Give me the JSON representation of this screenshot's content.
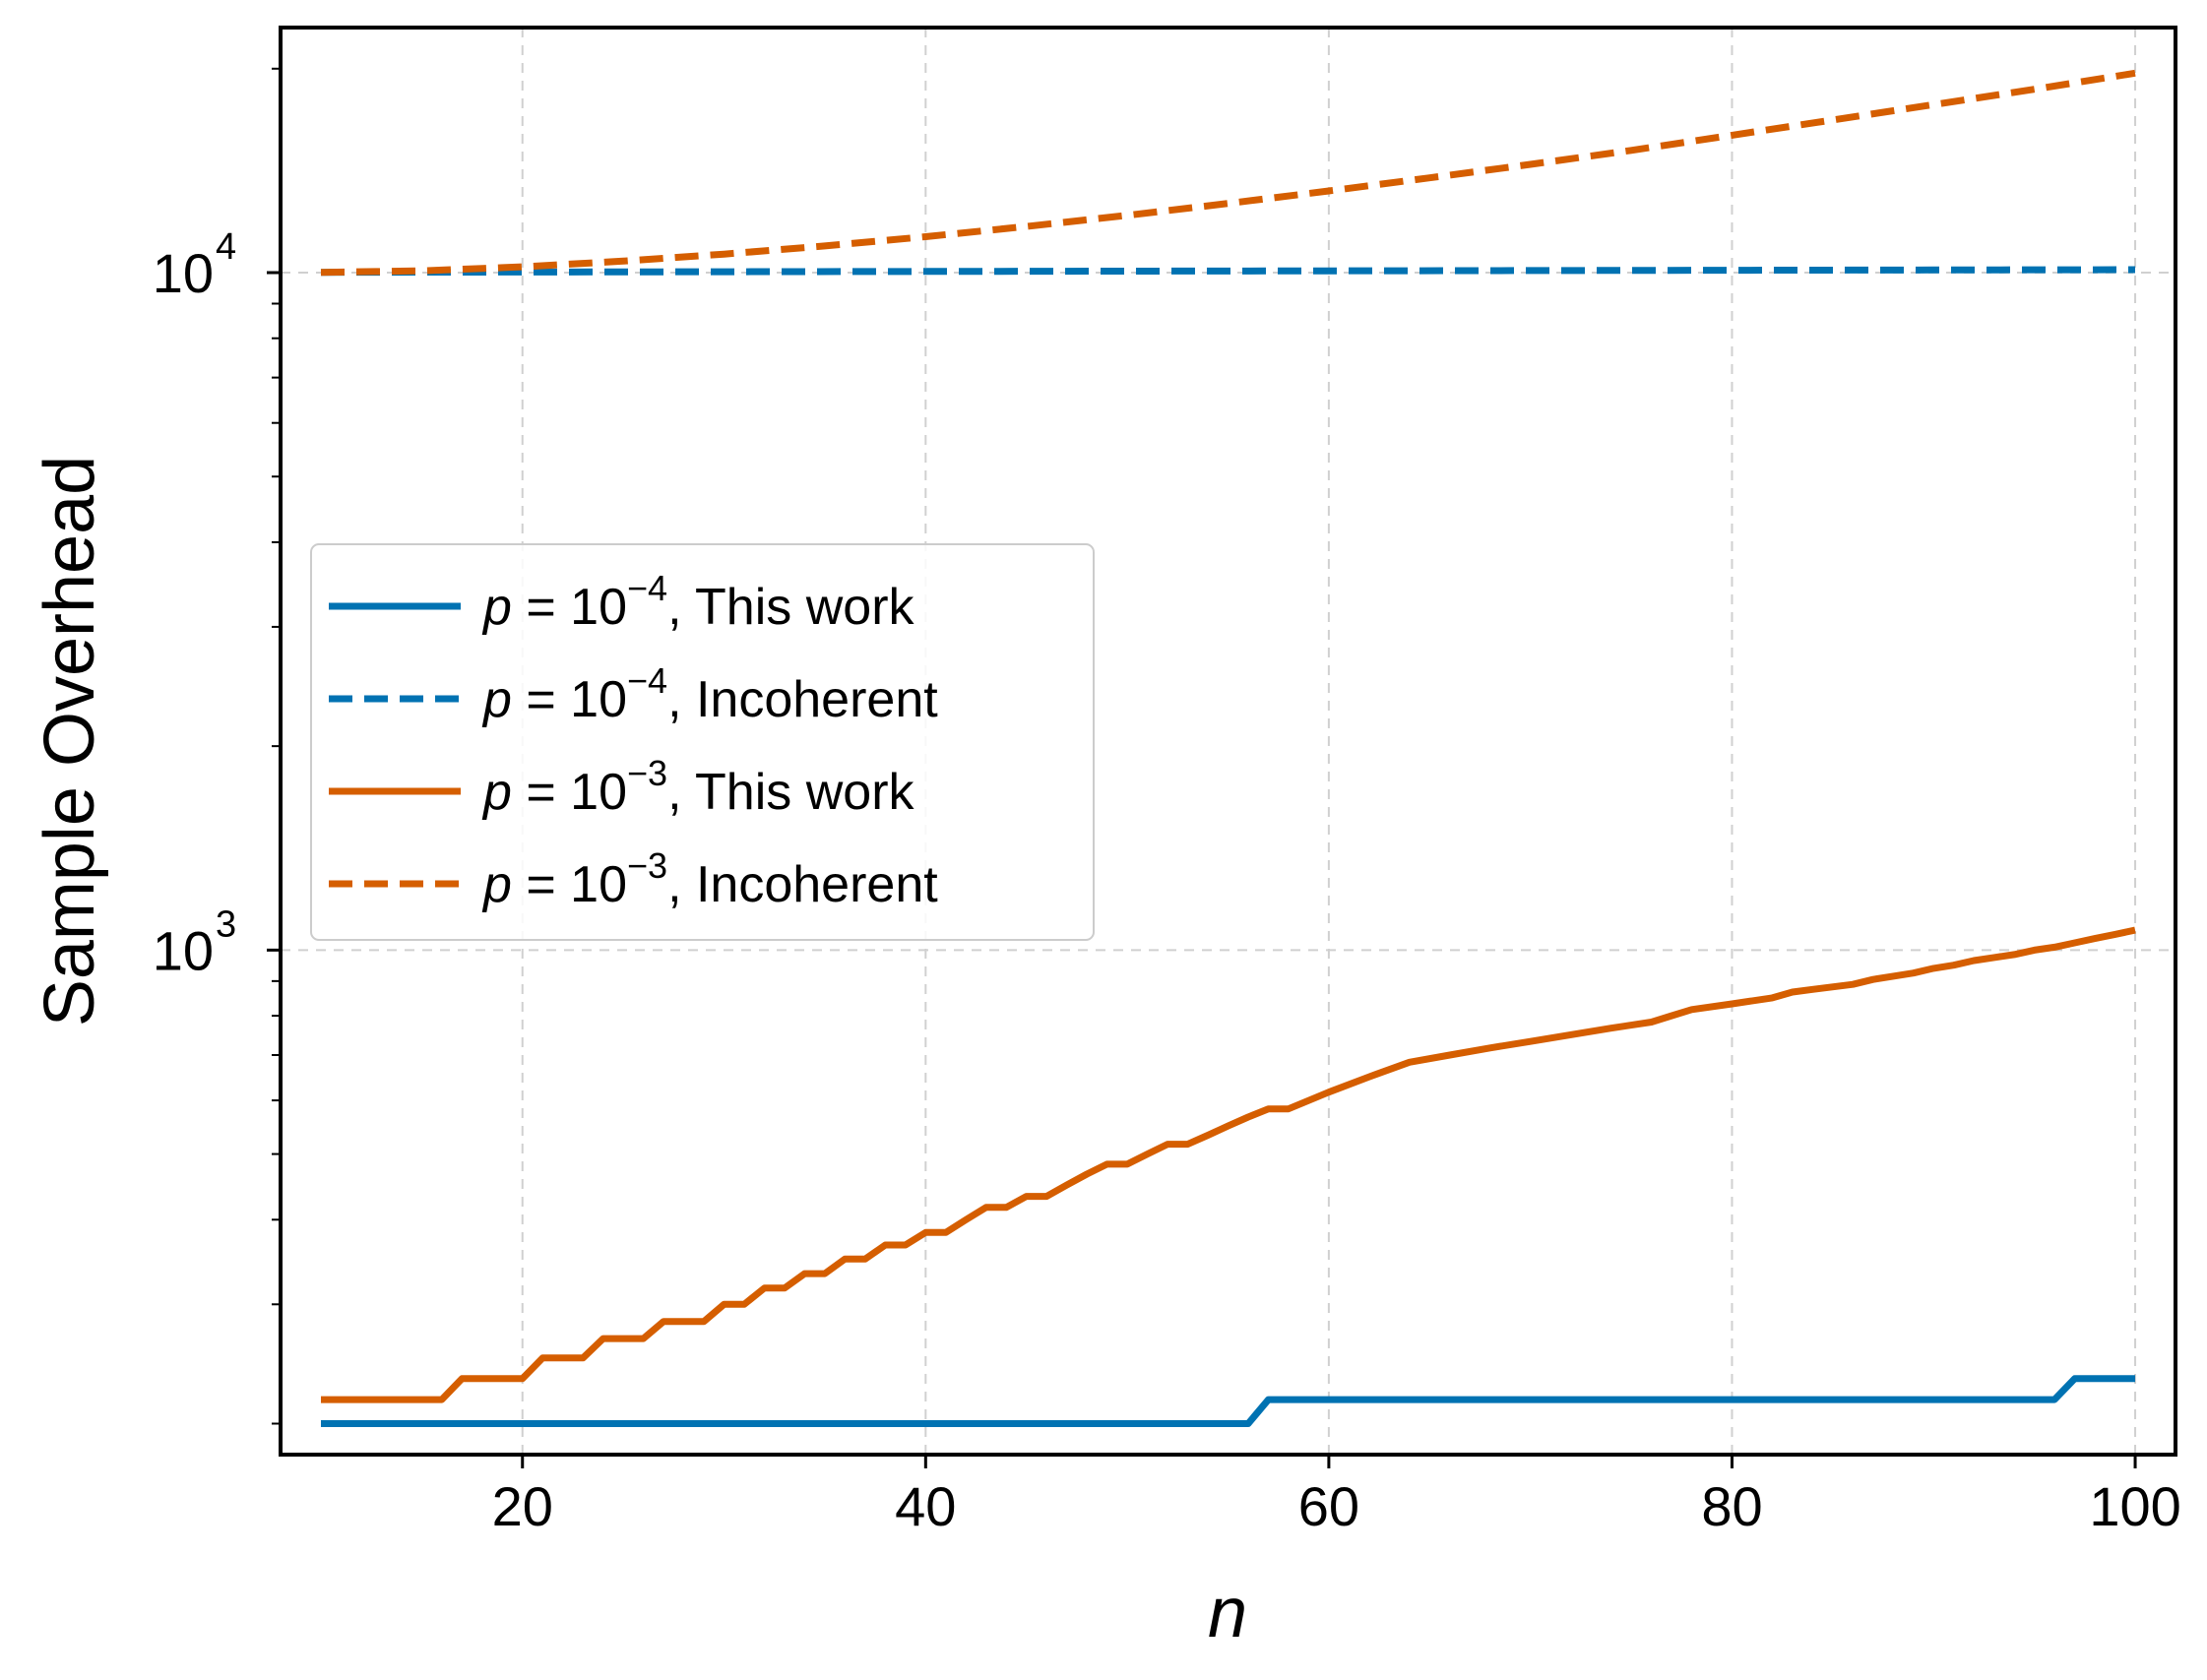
{
  "chart_data": {
    "type": "line",
    "xlabel": "n",
    "ylabel": "Sample Overhead",
    "yscale": "log",
    "xlim": [
      8,
      102
    ],
    "ylim": [
      180,
      23000
    ],
    "x_ticks": [
      20,
      40,
      60,
      80,
      100
    ],
    "y_ticks": [
      {
        "value": 1000,
        "base": "10",
        "exp": "3"
      },
      {
        "value": 10000,
        "base": "10",
        "exp": "4"
      }
    ],
    "grid": true,
    "legend_position": "center-left",
    "series": [
      {
        "name": "p = 10^-4, This work",
        "legend_math": "p = 10",
        "legend_exp": "−4",
        "legend_suffix": ", This work",
        "color": "#0072B2",
        "style": "solid",
        "x": [
          10,
          56,
          57,
          96,
          97,
          100
        ],
        "y": [
          200,
          200,
          217,
          217,
          233,
          233
        ]
      },
      {
        "name": "p = 10^-4, Incoherent",
        "legend_math": "p = 10",
        "legend_exp": "−4",
        "legend_suffix": ", Incoherent",
        "color": "#0072B2",
        "style": "dashed",
        "x": [
          10,
          20,
          30,
          40,
          50,
          60,
          70,
          80,
          90,
          100
        ],
        "y": [
          10010,
          10020,
          10030,
          10040,
          10050,
          10060,
          10070,
          10080,
          10090,
          10100
        ]
      },
      {
        "name": "p = 10^-3, This work",
        "legend_math": "p = 10",
        "legend_exp": "−3",
        "legend_suffix": ", This work",
        "color": "#D55E00",
        "style": "solid",
        "x": [
          10,
          16,
          17,
          20,
          21,
          23,
          24,
          26,
          27,
          29,
          30,
          31,
          32,
          33,
          34,
          35,
          36,
          37,
          38,
          39,
          40,
          41,
          42,
          43,
          44,
          45,
          46,
          47,
          48,
          49,
          50,
          51,
          52,
          53,
          54,
          55,
          56,
          57,
          58,
          60,
          62,
          64,
          66,
          68,
          70,
          72,
          74,
          76,
          77,
          78,
          80,
          82,
          83,
          84,
          86,
          87,
          88,
          89,
          90,
          91,
          92,
          93,
          94,
          95,
          96,
          97,
          98,
          99,
          100
        ],
        "y": [
          217,
          217,
          233,
          233,
          250,
          250,
          267,
          267,
          283,
          283,
          300,
          300,
          317,
          317,
          333,
          333,
          350,
          350,
          367,
          367,
          383,
          383,
          400,
          417,
          417,
          433,
          433,
          450,
          467,
          483,
          483,
          500,
          517,
          517,
          533,
          550,
          567,
          583,
          583,
          617,
          650,
          683,
          700,
          717,
          733,
          750,
          767,
          783,
          800,
          817,
          833,
          850,
          867,
          875,
          890,
          905,
          915,
          925,
          940,
          950,
          965,
          975,
          985,
          1000,
          1010,
          1025,
          1040,
          1055,
          1070
        ]
      },
      {
        "name": "p = 10^-3, Incoherent",
        "legend_math": "p = 10",
        "legend_exp": "−3",
        "legend_suffix": ", Incoherent",
        "color": "#D55E00",
        "style": "dashed",
        "x": [
          10,
          15,
          20,
          25,
          30,
          35,
          40,
          45,
          50,
          55,
          60,
          65,
          70,
          75,
          80,
          85,
          90,
          95,
          100
        ],
        "y": [
          10010,
          10060,
          10200,
          10400,
          10650,
          10950,
          11300,
          11700,
          12150,
          12650,
          13200,
          13800,
          14450,
          15150,
          15950,
          16800,
          17700,
          18650,
          19700
        ]
      }
    ]
  }
}
